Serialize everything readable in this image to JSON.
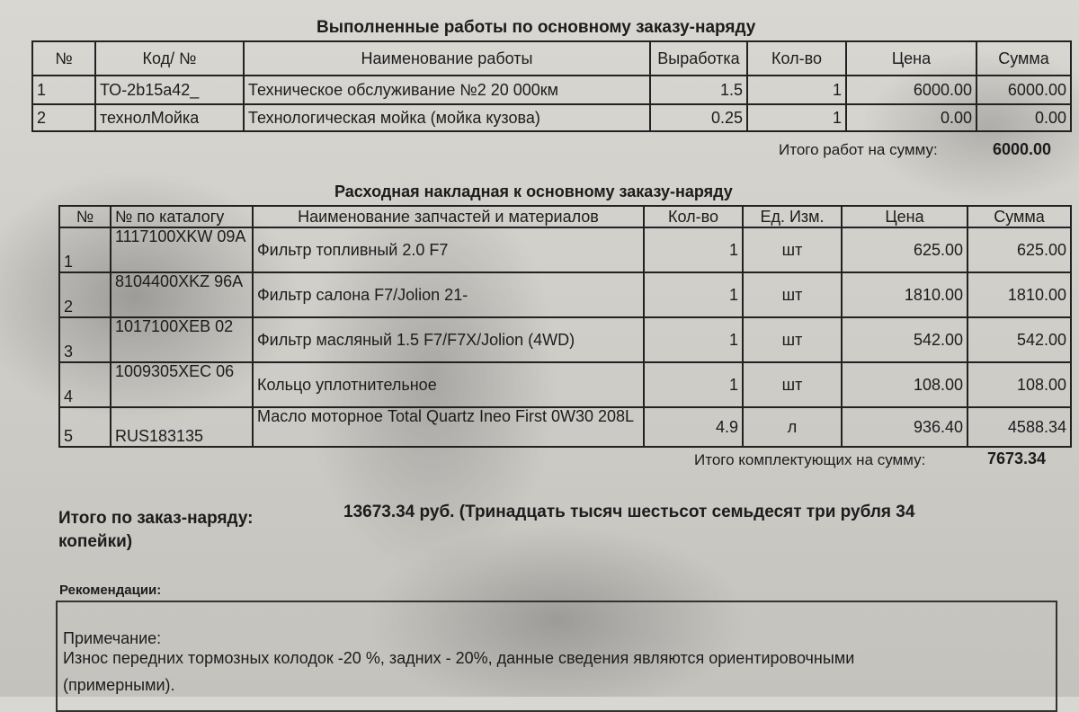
{
  "works": {
    "title": "Выполненные работы по основному заказу-наряду",
    "headers": [
      "№",
      "Код/ №",
      "Наименование работы",
      "Выработка",
      "Кол-во",
      "Цена",
      "Сумма"
    ],
    "rows": [
      {
        "n": "1",
        "code": "ТО-2b15a42_",
        "name": "Техническое обслуживание №2 20 000км",
        "hours": "1.5",
        "qty": "1",
        "price": "6000.00",
        "sum": "6000.00"
      },
      {
        "n": "2",
        "code": "технолМойка",
        "name": "Технологическая мойка (мойка кузова)",
        "hours": "0.25",
        "qty": "1",
        "price": "0.00",
        "sum": "0.00"
      }
    ],
    "total_label": "Итого работ на сумму:",
    "total_value": "6000.00"
  },
  "parts": {
    "title": "Расходная накладная к основному заказу-наряду",
    "headers": [
      "№",
      "№ по каталогу",
      "Наименование запчастей и материалов",
      "Кол-во",
      "Ед. Изм.",
      "Цена",
      "Сумма"
    ],
    "rows": [
      {
        "n": "1",
        "cat": "1117100XKW 09A",
        "name": "Фильтр топливный 2.0 F7",
        "qty": "1",
        "unit": "шт",
        "price": "625.00",
        "sum": "625.00"
      },
      {
        "n": "2",
        "cat": "8104400XKZ 96A",
        "name": "Фильтр салона F7/Jolion 21-",
        "qty": "1",
        "unit": "шт",
        "price": "1810.00",
        "sum": "1810.00"
      },
      {
        "n": "3",
        "cat": "1017100XEB 02",
        "name": "Фильтр масляный 1.5 F7/F7X/Jolion (4WD)",
        "qty": "1",
        "unit": "шт",
        "price": "542.00",
        "sum": "542.00"
      },
      {
        "n": "4",
        "cat": "1009305XEC 06",
        "name": "Кольцо уплотнительное",
        "qty": "1",
        "unit": "шт",
        "price": "108.00",
        "sum": "108.00"
      },
      {
        "n": "5",
        "cat": "RUS183135",
        "name": "Масло моторное Total Quartz Ineo First 0W30 208L",
        "qty": "4.9",
        "unit": "л",
        "price": "936.40",
        "sum": "4588.34"
      }
    ],
    "total_label": "Итого комплектующих на сумму:",
    "total_value": "7673.34"
  },
  "grand": {
    "label": "Итого по заказ-наряду:",
    "value": "13673.34 руб. (Тринадцать тысяч шестьсот семьдесят три рубля 34",
    "value_cont": "копейки)"
  },
  "recommendations": {
    "label": "Рекомендации:",
    "note_label": "Примечание:",
    "note_line1": "Износ передних тормозных колодок -20 %, задних - 20%, данные сведения  являются ориентировочными",
    "note_line2": "(примерными)."
  }
}
